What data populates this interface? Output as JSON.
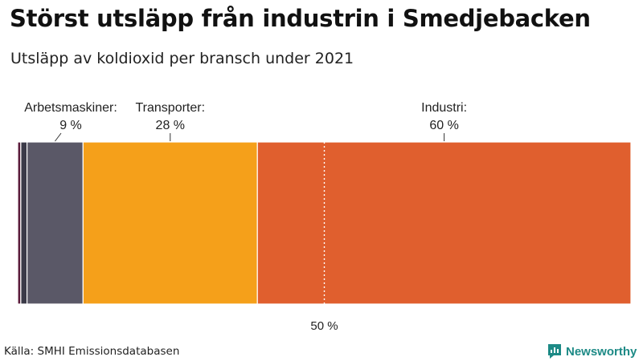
{
  "title": "Störst utsläpp från industrin i Smedjebacken",
  "subtitle": "Utsläpp av koldioxid per bransch under 2021",
  "source": "Källa: SMHI Emissionsdatabasen",
  "brand": "Newsworthy",
  "chart_data": {
    "type": "bar",
    "orientation": "horizontal-stacked-100",
    "segments": [
      {
        "name": "",
        "value": 0.5,
        "color": "#5a1a3a"
      },
      {
        "name": "",
        "value": 1.0,
        "color": "#3b3a48"
      },
      {
        "name": "Arbetsmaskiner",
        "value": 9,
        "value_label": "9 %",
        "color": "#5a5867"
      },
      {
        "name": "Transporter",
        "value": 28,
        "value_label": "28 %",
        "color": "#f5a01a"
      },
      {
        "name": "Industri",
        "value": 60,
        "value_label": "60 %",
        "color": "#e05f2e"
      }
    ],
    "reference_line": {
      "value": 50,
      "label": "50 %"
    },
    "xlim": [
      0,
      100
    ]
  }
}
